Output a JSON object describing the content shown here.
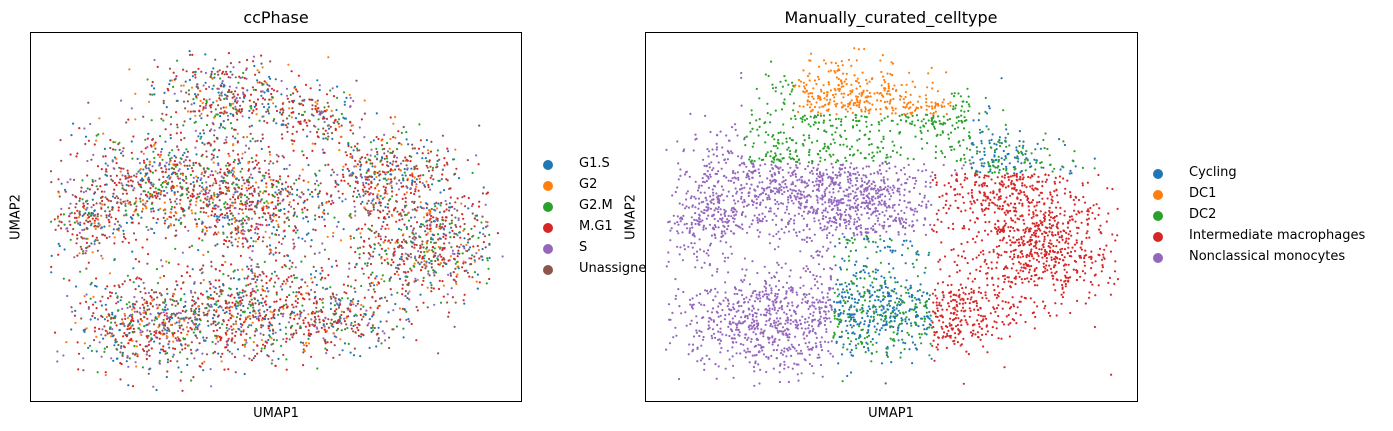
{
  "chart_data": [
    {
      "type": "scatter",
      "title": "ccPhase",
      "xlabel": "UMAP1",
      "ylabel": "UMAP2",
      "ticks": "none",
      "legend_position": "right",
      "series": [
        {
          "name": "G1.S",
          "color": "#1f77b4"
        },
        {
          "name": "G2",
          "color": "#ff7f0e"
        },
        {
          "name": "G2.M",
          "color": "#2ca02c"
        },
        {
          "name": "M.G1",
          "color": "#d62728"
        },
        {
          "name": "S",
          "color": "#9467bd"
        },
        {
          "name": "Unassigned",
          "color": "#8c564b"
        }
      ]
    },
    {
      "type": "scatter",
      "title": "Manually_curated_celltype",
      "xlabel": "UMAP1",
      "ylabel": "UMAP2",
      "ticks": "none",
      "legend_position": "right",
      "series": [
        {
          "name": "Cycling",
          "color": "#1f77b4"
        },
        {
          "name": "DC1",
          "color": "#ff7f0e"
        },
        {
          "name": "DC2",
          "color": "#2ca02c"
        },
        {
          "name": "Intermediate macrophages",
          "color": "#d62728"
        },
        {
          "name": "Nonclassical monocytes",
          "color": "#9467bd"
        }
      ]
    }
  ]
}
